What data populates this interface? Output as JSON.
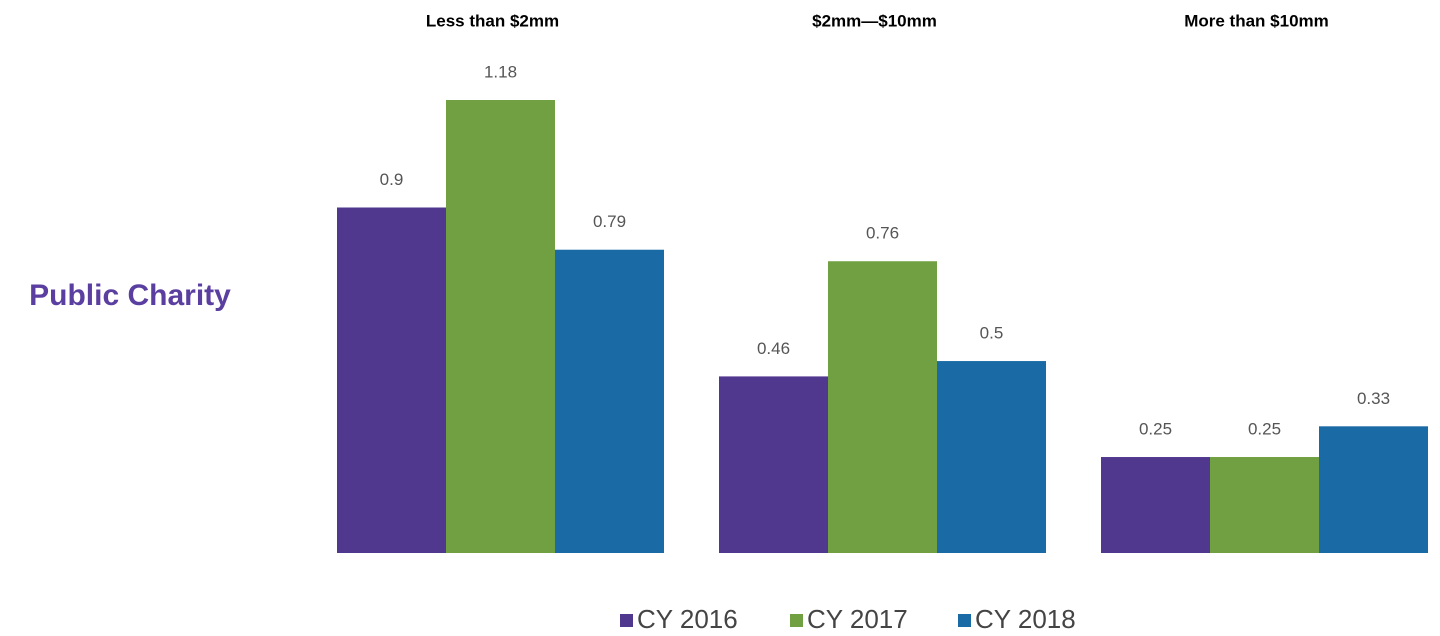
{
  "chart_data": {
    "type": "bar",
    "annotation": "Public Charity",
    "categories": [
      "Less than $2mm",
      "$2mm—$10mm",
      "More than $10mm"
    ],
    "series": [
      {
        "name": "CY 2016",
        "color": "#51388f",
        "values": [
          0.9,
          0.46,
          0.25
        ]
      },
      {
        "name": "CY 2017",
        "color": "#70a041",
        "values": [
          1.18,
          0.76,
          0.25
        ]
      },
      {
        "name": "CY 2018",
        "color": "#1a6aa5",
        "values": [
          0.79,
          0.5,
          0.33
        ]
      }
    ]
  }
}
